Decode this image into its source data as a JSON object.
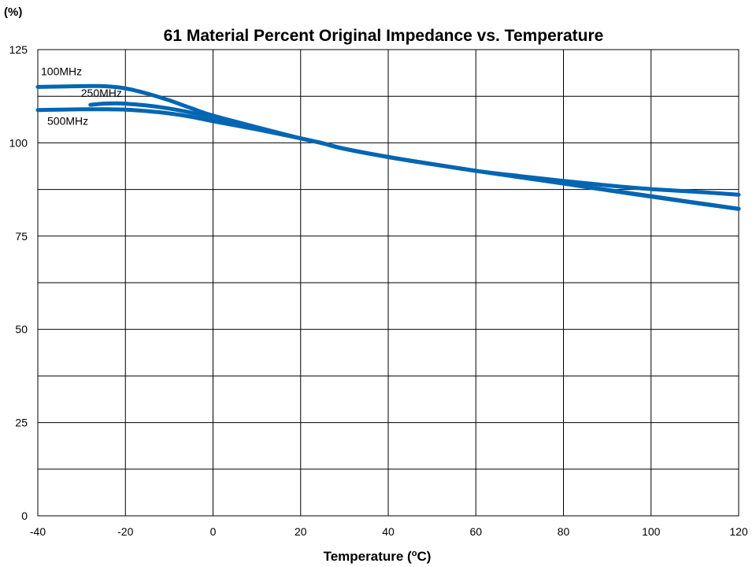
{
  "chart_data": {
    "type": "line",
    "title": "61 Material Percent Original Impedance vs. Temperature",
    "ylabel": "(%)",
    "xlabel_main": "Temperature (",
    "xlabel_sup": "o",
    "xlabel_end": "C)",
    "xlim": [
      -40,
      120
    ],
    "ylim": [
      0,
      125
    ],
    "x_ticks": [
      -40,
      -20,
      0,
      20,
      40,
      60,
      80,
      100,
      120
    ],
    "y_ticks": [
      0,
      25,
      50,
      75,
      100,
      125
    ],
    "y_grid": [
      0,
      12.5,
      25,
      37.5,
      50,
      62.5,
      75,
      87.5,
      100,
      112.5,
      125
    ],
    "grid": true,
    "line_color": "#0066b3",
    "series": [
      {
        "name": "100MHz",
        "x": [
          -40,
          -30,
          -25,
          -20,
          -15,
          -10,
          -5,
          0,
          10,
          20,
          25,
          30,
          40,
          50,
          60,
          70,
          80,
          90,
          100,
          110,
          120
        ],
        "y": [
          115,
          115.2,
          115.2,
          114.6,
          113.2,
          111.4,
          109.3,
          107.3,
          104.2,
          101.2,
          99.9,
          98.4,
          96.2,
          94.3,
          92.5,
          91.1,
          89.8,
          88.6,
          87.6,
          86.9,
          86.1
        ]
      },
      {
        "name": "250MHz",
        "x": [
          -28,
          -25,
          -22,
          -20,
          -15,
          -10,
          -5,
          0,
          10,
          20,
          25,
          30,
          40,
          50,
          60,
          70,
          80,
          90,
          100,
          110,
          120
        ],
        "y": [
          110.2,
          110.5,
          110.6,
          110.5,
          110,
          109.2,
          108.1,
          106.8,
          104,
          101.2,
          99.9,
          98.4,
          96.2,
          94.3,
          92.5,
          90.8,
          89.1,
          87.3,
          85.6,
          83.9,
          82.3
        ]
      },
      {
        "name": "500MHz",
        "x": [
          -40,
          -35,
          -30,
          -25,
          -20,
          -15,
          -10,
          -5,
          0,
          10,
          20,
          25,
          30,
          40,
          50,
          60,
          70,
          80,
          90,
          100,
          110,
          120
        ],
        "y": [
          108.8,
          108.9,
          109,
          109,
          108.9,
          108.5,
          107.9,
          107,
          105.8,
          103.6,
          101.2,
          99.9,
          98.4,
          96.2,
          94.3,
          92.5,
          90.8,
          89.1,
          87.4,
          85.7,
          84,
          82.3
        ]
      }
    ]
  }
}
